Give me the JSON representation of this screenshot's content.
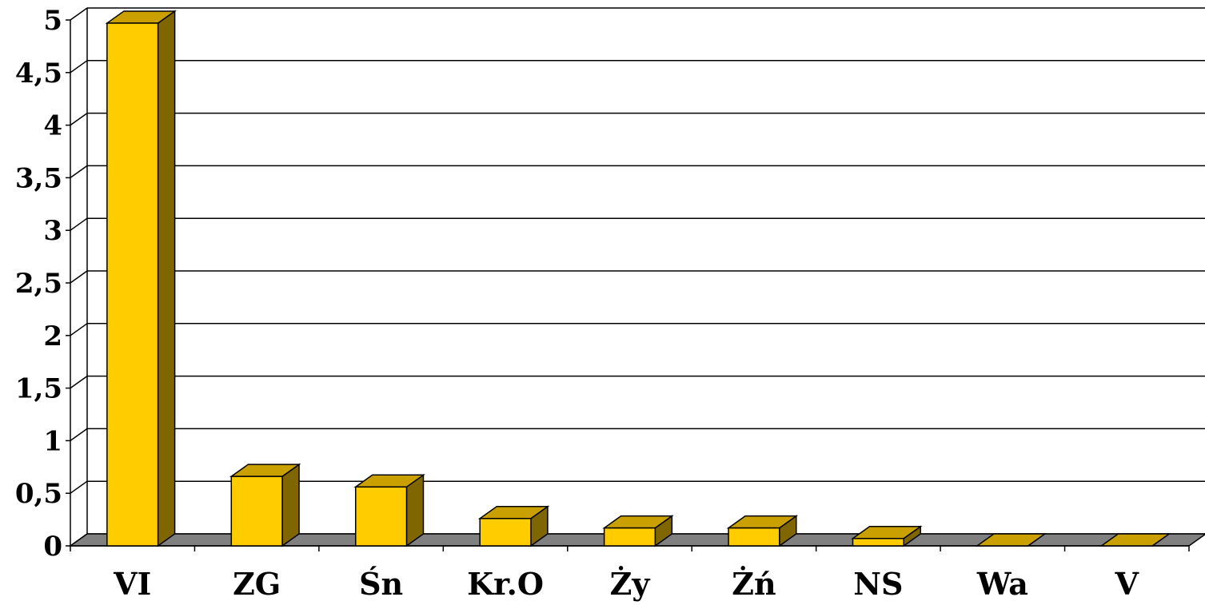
{
  "chart_data": {
    "type": "bar",
    "style": "3d",
    "categories": [
      "VI",
      "ZG",
      "Śn",
      "Kr.O",
      "Ży",
      "Żń",
      "NS",
      "Wa",
      "V"
    ],
    "values": [
      4.97,
      0.66,
      0.56,
      0.26,
      0.17,
      0.17,
      0.07,
      0,
      0
    ],
    "ylim": [
      0,
      5
    ],
    "yticks": [
      "0",
      "0,5",
      "1",
      "1,5",
      "2",
      "2,5",
      "3",
      "3,5",
      "4",
      "4,5",
      "5"
    ],
    "title": "",
    "xlabel": "",
    "ylabel": "",
    "grid": true,
    "legend": "none",
    "colors": {
      "bar_front": "#ffcc00",
      "bar_top": "#c9a000",
      "bar_side": "#7f6600",
      "floor": "#808080"
    }
  }
}
